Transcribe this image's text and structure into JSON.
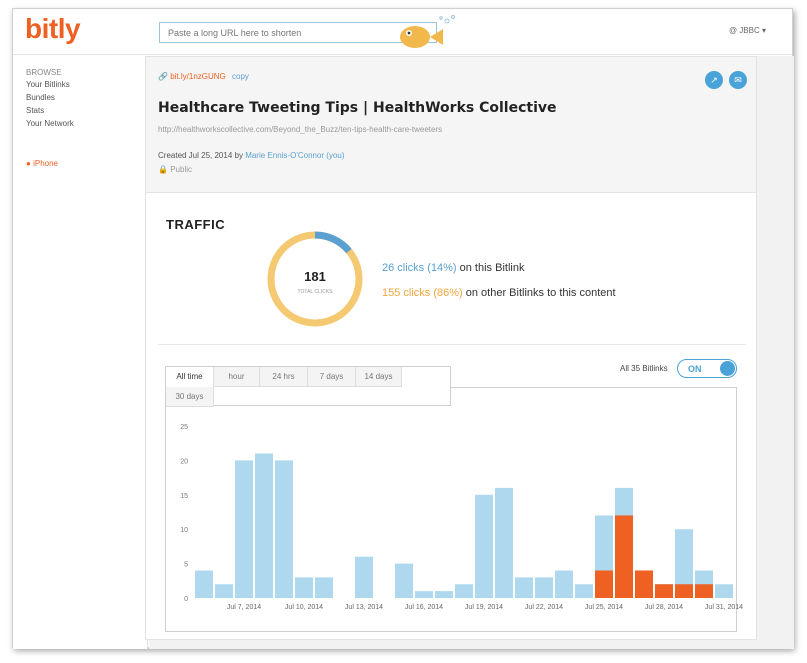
{
  "header": {
    "logo": "bitly",
    "url_placeholder": "Paste a long URL here to shorten",
    "user": "JBBC"
  },
  "sidebar": {
    "heading": "BROWSE",
    "items": [
      {
        "label": "Your Bitlinks"
      },
      {
        "label": "Bundles"
      },
      {
        "label": "Stats"
      },
      {
        "label": "Your Network"
      }
    ],
    "iphone_label": "iPhone"
  },
  "link": {
    "short": "bit.ly/1nzGUNG",
    "copy_label": "copy",
    "title": "Healthcare Tweeting Tips | HealthWorks Collective",
    "long_url": "http://healthworkscollective.com/Beyond_the_Buzz/ten-tips-health-care-tweeters",
    "created_prefix": "Created Jul 25, 2014 by",
    "author": "Marie Ennis-O'Connor (you)",
    "privacy": "Public"
  },
  "traffic": {
    "title": "TRAFFIC",
    "total": "181",
    "total_label": "TOTAL CLICKS",
    "this_clicks": "26 clicks (14%)",
    "this_suffix": "on this Bitlink",
    "other_clicks": "155 clicks (86%)",
    "other_suffix": "on other Bitlinks to this content",
    "this_fraction": 0.14
  },
  "tabs": [
    {
      "label": "All time",
      "active": true
    },
    {
      "label": "hour"
    },
    {
      "label": "24 hrs"
    },
    {
      "label": "7 days"
    },
    {
      "label": "14 days"
    },
    {
      "label": "30 days"
    }
  ],
  "toggle": {
    "label": "All 35 Bitlinks",
    "state": "ON"
  },
  "colors": {
    "accent_orange": "#ee6123",
    "bar_blue": "#aed8ee",
    "bar_orange": "#ee6123",
    "donut_blue": "#5aa0d0",
    "donut_yellow": "#f5c872"
  },
  "chart_data": {
    "type": "bar",
    "ylim": [
      0,
      25
    ],
    "yticks": [
      0,
      5,
      10,
      15,
      20,
      25
    ],
    "x_tick_labels": [
      "Jul 7, 2014",
      "Jul 10, 2014",
      "Jul 13, 2014",
      "Jul 16, 2014",
      "Jul 19, 2014",
      "Jul 22, 2014",
      "Jul 25, 2014",
      "Jul 28, 2014",
      "Jul 31, 2014"
    ],
    "categories": [
      "Jul 5",
      "Jul 6",
      "Jul 7",
      "Jul 8",
      "Jul 9",
      "Jul 10",
      "Jul 11",
      "Jul 12",
      "Jul 13",
      "Jul 14",
      "Jul 15",
      "Jul 16",
      "Jul 17",
      "Jul 18",
      "Jul 19",
      "Jul 20",
      "Jul 21",
      "Jul 22",
      "Jul 23",
      "Jul 24",
      "Jul 25",
      "Jul 26",
      "Jul 27",
      "Jul 28",
      "Jul 29",
      "Jul 30",
      "Jul 31"
    ],
    "series": [
      {
        "values": [
          4,
          2,
          20,
          21,
          20,
          3,
          3,
          0,
          6,
          0,
          5,
          1,
          1,
          2,
          15,
          16,
          3,
          3,
          4,
          2,
          12,
          16,
          4,
          2,
          10,
          4,
          2
        ]
      },
      {
        "values": [
          0,
          0,
          0,
          0,
          0,
          0,
          0,
          0,
          0,
          0,
          0,
          0,
          0,
          0,
          0,
          0,
          0,
          0,
          0,
          0,
          4,
          12,
          4,
          2,
          2,
          2,
          0
        ]
      }
    ]
  }
}
